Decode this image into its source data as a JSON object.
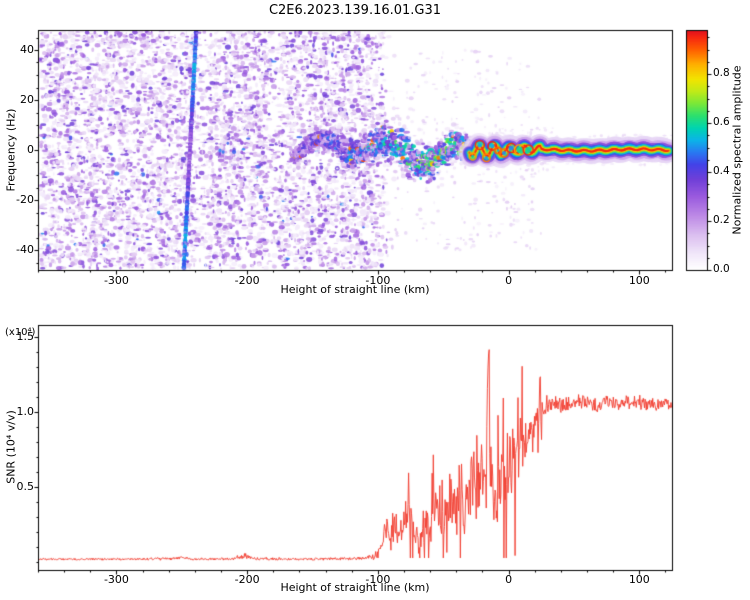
{
  "figure": {
    "background": "#ffffff"
  },
  "chart_data": [
    {
      "type": "heatmap",
      "name": "spectrogram",
      "title": "C2E6.2023.139.16.01.G31",
      "xlabel": "Height of straight line (km)",
      "ylabel": "Frequency (Hz)",
      "xlim": [
        -360,
        125
      ],
      "ylim": [
        -48,
        48
      ],
      "xticks": [
        -300,
        -200,
        -100,
        0,
        100
      ],
      "yticks": [
        40,
        20,
        0,
        -20,
        -40
      ],
      "x_minor_step": 20,
      "y_minor_step": 5,
      "seed": 42,
      "colorbar": {
        "label": "Normalized spectral amplitude",
        "tick_values": [
          0.0,
          0.2,
          0.4,
          0.6,
          0.8
        ],
        "tick_labels": [
          "0.0",
          "0.2",
          "0.4",
          "0.6",
          "0.8"
        ],
        "minor_step": 0.05,
        "vmin": 0,
        "vmax": 0.98
      },
      "colormap": [
        [
          0.0,
          "#ffffff"
        ],
        [
          0.06,
          "#f2e9fa"
        ],
        [
          0.14,
          "#dcc0f0"
        ],
        [
          0.22,
          "#bd8ae6"
        ],
        [
          0.3,
          "#9a5ade"
        ],
        [
          0.37,
          "#6f3fd8"
        ],
        [
          0.43,
          "#4342e8"
        ],
        [
          0.48,
          "#2979f2"
        ],
        [
          0.53,
          "#0cb4e8"
        ],
        [
          0.58,
          "#00d4b0"
        ],
        [
          0.63,
          "#2ce06e"
        ],
        [
          0.68,
          "#7ae838"
        ],
        [
          0.73,
          "#c0ea18"
        ],
        [
          0.78,
          "#f2e400"
        ],
        [
          0.84,
          "#ffb000"
        ],
        [
          0.9,
          "#ff6000"
        ],
        [
          0.95,
          "#f72810"
        ],
        [
          1.0,
          "#cf0028"
        ]
      ],
      "features": {
        "noise_field": {
          "x_range": [
            -358,
            -88
          ],
          "f_range": [
            -47.5,
            47.5
          ],
          "count": 6200,
          "value_range": [
            0.05,
            0.42
          ]
        },
        "fade_edge": {
          "x_range": [
            -105,
            -88
          ]
        },
        "light_bands_km": [
          [
            -240,
            -229
          ],
          [
            -185,
            -176
          ]
        ],
        "sparse_dots": {
          "x_range": [
            -88,
            25
          ],
          "count": 300,
          "value_range": [
            0.04,
            0.14
          ]
        },
        "diagonal_streak": {
          "from_km_hz": [
            -239,
            47.5
          ],
          "to_km_hz": [
            -248.5,
            -47.5
          ],
          "value_range": [
            0.35,
            0.55
          ]
        },
        "precursor_cluster": {
          "x_range": [
            -222,
            -195
          ],
          "center_hz": 0,
          "half_width_hz": 7,
          "value_range": [
            0.2,
            0.5
          ]
        },
        "chaotic_band": {
          "x_range": [
            -165,
            -30
          ],
          "center_hz": 0,
          "max_half_width_hz": 13,
          "value_range": [
            0.15,
            0.95
          ]
        },
        "narrow_trace": {
          "x_range": [
            -30,
            122
          ],
          "center_hz": 0,
          "wiggle_hz": 2.2,
          "layers_hw_hz_value": [
            [
              4.5,
              0.1
            ],
            [
              3.4,
              0.18
            ],
            [
              2.6,
              0.32
            ],
            [
              2.0,
              0.45
            ],
            [
              1.5,
              0.55
            ],
            [
              1.1,
              0.68
            ],
            [
              0.75,
              0.82
            ],
            [
              0.4,
              0.95
            ]
          ]
        },
        "ring_km": [
          -27.5,
          -22,
          -17,
          -12.5,
          -8,
          -3.5,
          2,
          8.5,
          15
        ]
      }
    },
    {
      "type": "line",
      "name": "snr-profile",
      "xlabel": "Height of straight line (km)",
      "ylabel": "SNR (10⁴ v/v)",
      "scale_label": "(x10⁴)",
      "xlim": [
        -360,
        125
      ],
      "ylim": [
        -0.05,
        1.58
      ],
      "xticks": [
        -300,
        -200,
        -100,
        0,
        100
      ],
      "x_minor_step": 20,
      "yticks": [
        0.5,
        1.0,
        1.5
      ],
      "ytick_labels": [
        "0.5",
        "1.0",
        "1.5"
      ],
      "y_minor_step": 0.1,
      "color": "#f23b2e",
      "seed": 777,
      "envelope_x_mean_jitter": [
        [
          -360,
          0.022,
          0.008
        ],
        [
          -300,
          0.022,
          0.008
        ],
        [
          -255,
          0.025,
          0.01
        ],
        [
          -250,
          0.032,
          0.016
        ],
        [
          -245,
          0.024,
          0.01
        ],
        [
          -212,
          0.022,
          0.009
        ],
        [
          -202,
          0.045,
          0.025
        ],
        [
          -195,
          0.026,
          0.012
        ],
        [
          -160,
          0.022,
          0.009
        ],
        [
          -120,
          0.026,
          0.012
        ],
        [
          -103,
          0.035,
          0.02
        ],
        [
          -97,
          0.1,
          0.07
        ],
        [
          -93,
          0.27,
          0.16
        ],
        [
          -90,
          0.17,
          0.12
        ],
        [
          -87,
          0.32,
          0.2
        ],
        [
          -84,
          0.16,
          0.11
        ],
        [
          -80,
          0.28,
          0.18
        ],
        [
          -76,
          0.42,
          0.22
        ],
        [
          -72,
          0.18,
          0.12
        ],
        [
          -68,
          0.13,
          0.09
        ],
        [
          -64,
          0.3,
          0.19
        ],
        [
          -60,
          0.2,
          0.14
        ],
        [
          -56,
          0.44,
          0.24
        ],
        [
          -52,
          0.26,
          0.17
        ],
        [
          -48,
          0.36,
          0.22
        ],
        [
          -44,
          0.5,
          0.27
        ],
        [
          -40,
          0.3,
          0.2
        ],
        [
          -36,
          0.46,
          0.27
        ],
        [
          -32,
          0.36,
          0.22
        ],
        [
          -28,
          0.55,
          0.3
        ],
        [
          -24,
          0.45,
          0.27
        ],
        [
          -20,
          0.6,
          0.32
        ],
        [
          -17,
          0.55,
          0.3
        ],
        [
          -15.5,
          1.52,
          0.04
        ],
        [
          -14,
          0.6,
          0.3
        ],
        [
          -12,
          0.46,
          0.25
        ],
        [
          -10,
          0.36,
          0.2
        ],
        [
          -8,
          0.5,
          0.27
        ],
        [
          -6,
          0.42,
          0.24
        ],
        [
          -4,
          0.6,
          0.3
        ],
        [
          -2,
          0.52,
          0.27
        ],
        [
          0,
          0.68,
          0.27
        ],
        [
          3,
          0.75,
          0.24
        ],
        [
          6,
          0.62,
          0.24
        ],
        [
          9,
          0.85,
          0.2
        ],
        [
          12,
          0.76,
          0.21
        ],
        [
          15,
          0.9,
          0.17
        ],
        [
          18,
          0.83,
          0.17
        ],
        [
          21,
          0.95,
          0.13
        ],
        [
          24,
          1.0,
          0.1
        ],
        [
          28,
          1.04,
          0.08
        ],
        [
          35,
          1.06,
          0.06
        ],
        [
          45,
          1.05,
          0.06
        ],
        [
          55,
          1.08,
          0.06
        ],
        [
          65,
          1.04,
          0.06
        ],
        [
          75,
          1.07,
          0.06
        ],
        [
          85,
          1.05,
          0.06
        ],
        [
          95,
          1.08,
          0.06
        ],
        [
          105,
          1.06,
          0.06
        ],
        [
          115,
          1.05,
          0.05
        ],
        [
          125,
          1.06,
          0.05
        ]
      ]
    }
  ]
}
